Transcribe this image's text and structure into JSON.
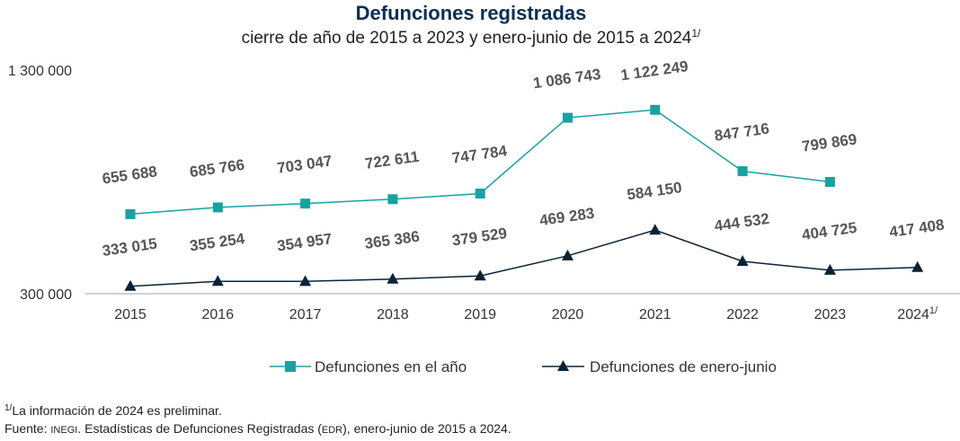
{
  "colors": {
    "title": "#0b2e54",
    "series_annual": "#17a2a2",
    "series_semester": "#0b2236",
    "axis": "#bfbfbf",
    "text": "#333333",
    "label": "#555555"
  },
  "chart_data": {
    "type": "line",
    "title": "Defunciones registradas",
    "subtitle": "cierre de año de 2015 a 2023 y enero-junio de 2015 a 2024",
    "subtitle_sup": "1/",
    "categories": [
      "2015",
      "2016",
      "2017",
      "2018",
      "2019",
      "2020",
      "2021",
      "2022",
      "2023",
      "2024"
    ],
    "last_category_sup": "1/",
    "ylim": [
      300000,
      1300000
    ],
    "yticks": [
      {
        "value": 1300000,
        "label": "1 300 000"
      },
      {
        "value": 300000,
        "label": "300 000"
      }
    ],
    "grid": false,
    "legend_position": "bottom",
    "series": [
      {
        "name": "Defunciones en el año",
        "marker": "square",
        "values": [
          655688,
          685766,
          703047,
          722611,
          747784,
          1086743,
          1122249,
          847716,
          799869,
          null
        ],
        "labels": [
          "655 688",
          "685 766",
          "703 047",
          "722 611",
          "747 784",
          "1 086 743",
          "1 122 249",
          "847 716",
          "799 869",
          ""
        ]
      },
      {
        "name": "Defunciones de enero-junio",
        "marker": "triangle",
        "values": [
          333015,
          355254,
          354957,
          365386,
          379529,
          469283,
          584150,
          444532,
          404725,
          417408
        ],
        "labels": [
          "333 015",
          "355 254",
          "354 957",
          "365 386",
          "379 529",
          "469 283",
          "584 150",
          "444 532",
          "404 725",
          "417 408"
        ]
      }
    ]
  },
  "footnotes": {
    "note_sup": "1/",
    "note": "La información de 2024 es preliminar.",
    "source_prefix": "Fuente: ",
    "source_inegi": "INEGI",
    "source_mid": ". Estadísticas de Defunciones Registradas (",
    "source_edr": "EDR",
    "source_end": "), enero-junio de 2015 a 2024."
  }
}
